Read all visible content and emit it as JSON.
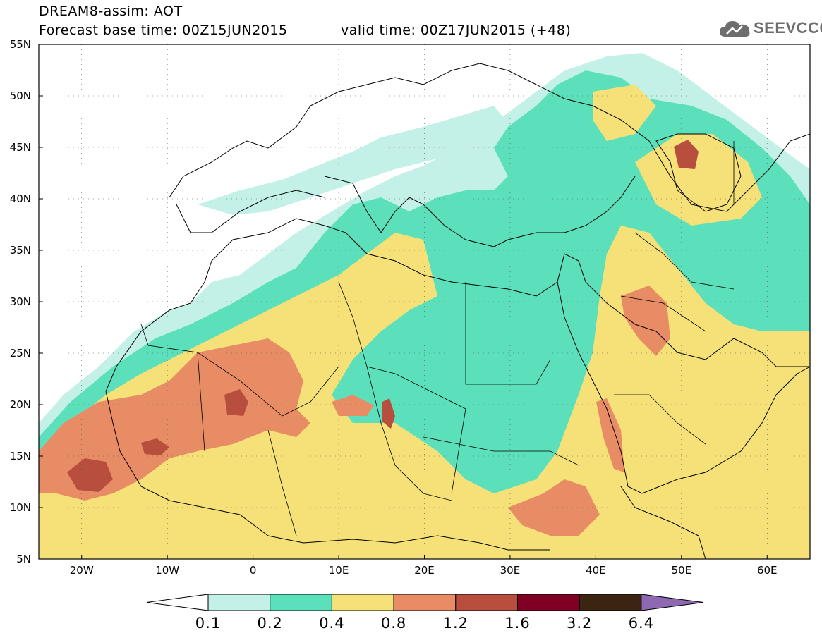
{
  "header": {
    "title": "DREAM8-assim: AOT",
    "base_time": "Forecast base time: 00Z15JUN2015",
    "valid_time": "valid time: 00Z17JUN2015 (+48)"
  },
  "logo": {
    "icon": "cloud-icon",
    "text": "SEEVCCC"
  },
  "axes": {
    "lat_labels": [
      "55N",
      "50N",
      "45N",
      "40N",
      "35N",
      "30N",
      "25N",
      "20N",
      "15N",
      "10N",
      "5N"
    ],
    "lon_labels": [
      "20W",
      "10W",
      "0",
      "10E",
      "20E",
      "30E",
      "40E",
      "50E",
      "60E"
    ],
    "lat_range": [
      5,
      55
    ],
    "lon_range": [
      -25,
      65
    ]
  },
  "colorbar": {
    "labels": [
      "0.1",
      "0.2",
      "0.4",
      "0.8",
      "1.2",
      "1.6",
      "3.2",
      "6.4"
    ],
    "colors": [
      "#c3f0e7",
      "#5ce0bc",
      "#f5e177",
      "#e88c66",
      "#b84f3e",
      "#800024",
      "#3b2412",
      "#8e68b0"
    ],
    "under_color": "#ffffff"
  },
  "field_colors": {
    "c01": "#c3f0e7",
    "c02": "#5ce0bc",
    "c04": "#f5e177",
    "c08": "#e88c66",
    "c12": "#b84f3e"
  }
}
